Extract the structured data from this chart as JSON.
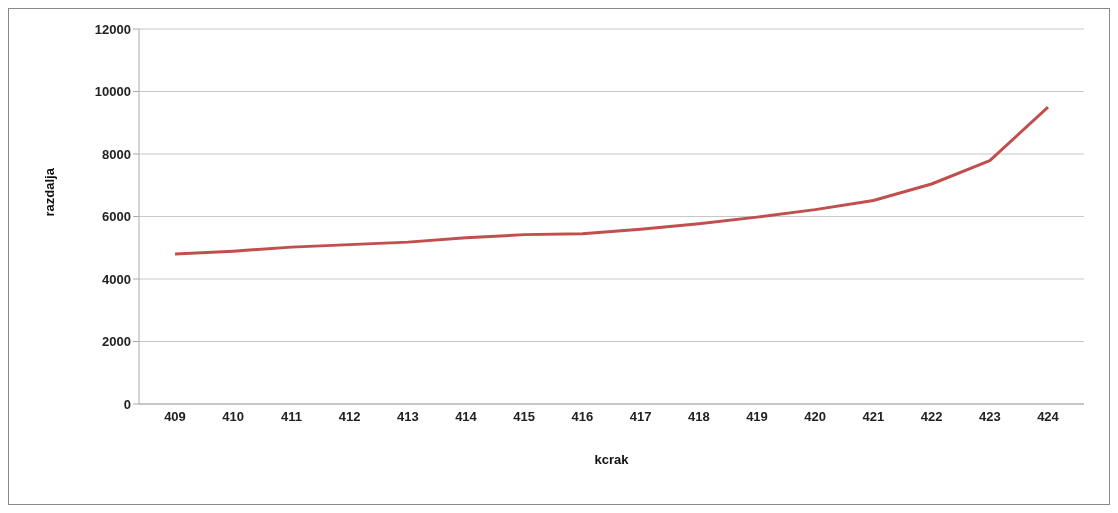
{
  "chart_data": {
    "type": "line",
    "xlabel": "kcrak",
    "ylabel": "razdalja",
    "categories": [
      "409",
      "410",
      "411",
      "412",
      "413",
      "414",
      "415",
      "416",
      "417",
      "418",
      "419",
      "420",
      "421",
      "422",
      "423",
      "424"
    ],
    "series": [
      {
        "color": "#c0504d",
        "values": [
          4800,
          4890,
          5020,
          5100,
          5180,
          5320,
          5420,
          5450,
          5590,
          5770,
          5980,
          6220,
          6510,
          7040,
          7790,
          9500
        ]
      }
    ],
    "ylim": [
      0,
      12000
    ],
    "yticks": [
      0,
      2000,
      4000,
      6000,
      8000,
      10000,
      12000
    ],
    "grid": "y",
    "marker": "none",
    "line_style": "solid"
  }
}
